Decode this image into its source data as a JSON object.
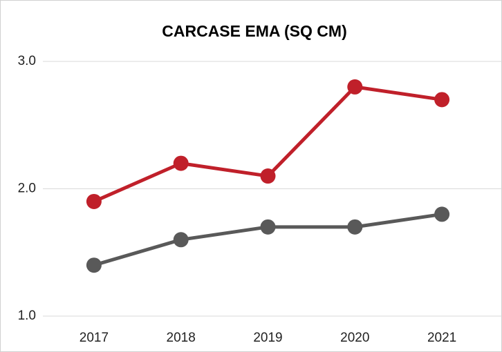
{
  "chart_data": {
    "type": "line",
    "title": "CARCASE EMA (SQ CM)",
    "categories": [
      "2017",
      "2018",
      "2019",
      "2020",
      "2021"
    ],
    "series": [
      {
        "color": "#c0202a",
        "values": [
          1.9,
          2.2,
          2.1,
          2.8,
          2.7
        ]
      },
      {
        "color": "#595959",
        "values": [
          1.4,
          1.6,
          1.7,
          1.7,
          1.8
        ]
      }
    ],
    "ylim": [
      1,
      3
    ],
    "yticks": [
      {
        "value": 1,
        "label": "1.0"
      },
      {
        "value": 2,
        "label": "2.0"
      },
      {
        "value": 3,
        "label": "3.0"
      }
    ],
    "grid": true
  }
}
